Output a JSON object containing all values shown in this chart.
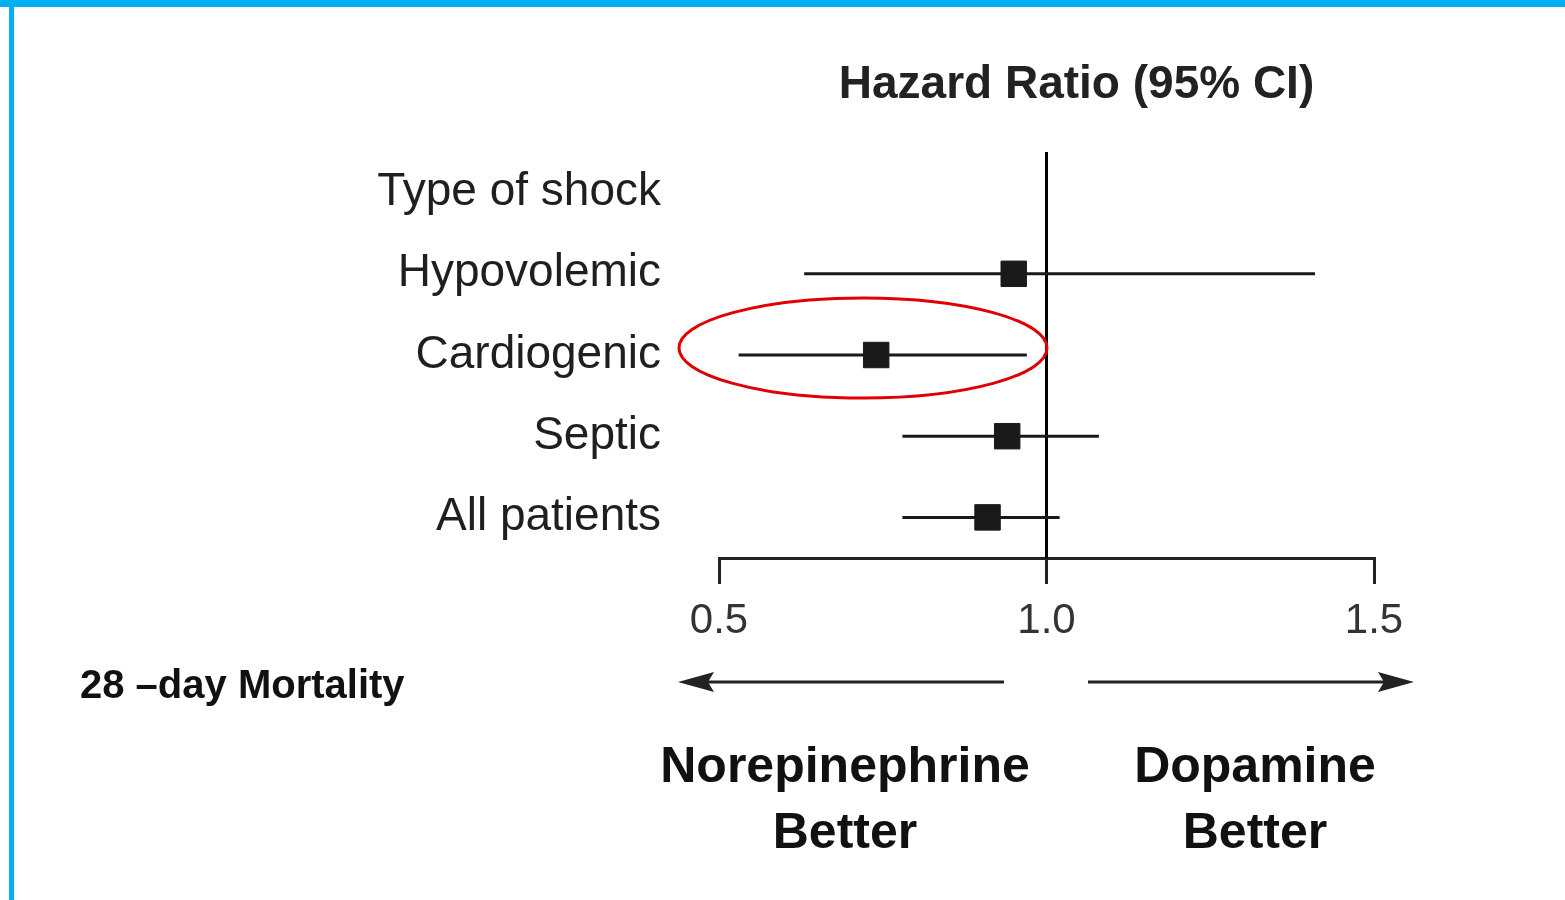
{
  "chart_data": {
    "type": "scatter",
    "orientation": "horizontal",
    "title": "Hazard Ratio (95% CI)",
    "categories": [
      "Type of shock",
      "Hypovolemic",
      "Cardiogenic",
      "Septic",
      "All patients"
    ],
    "values": [
      null,
      0.95,
      0.74,
      0.94,
      0.91
    ],
    "errors": [
      null,
      [
        0.63,
        1.41
      ],
      [
        0.53,
        0.97
      ],
      [
        0.78,
        1.08
      ],
      [
        0.78,
        1.02
      ]
    ],
    "color": "#1a1a1a",
    "marker": "square",
    "xlim": [
      0.5,
      1.5
    ],
    "xticks": [
      {
        "value": 0.5,
        "label": "0.5"
      },
      {
        "value": 1,
        "label": "1.0"
      },
      {
        "value": 1.5,
        "label": "1.5"
      }
    ],
    "ref_lines": [
      {
        "axis": "x",
        "value": 1,
        "color": "#000000"
      }
    ],
    "annotations": [
      "28 –day Mortality",
      "Norepinephrine Better",
      "Dopamine Better"
    ],
    "grid": false,
    "legend": false
  }
}
